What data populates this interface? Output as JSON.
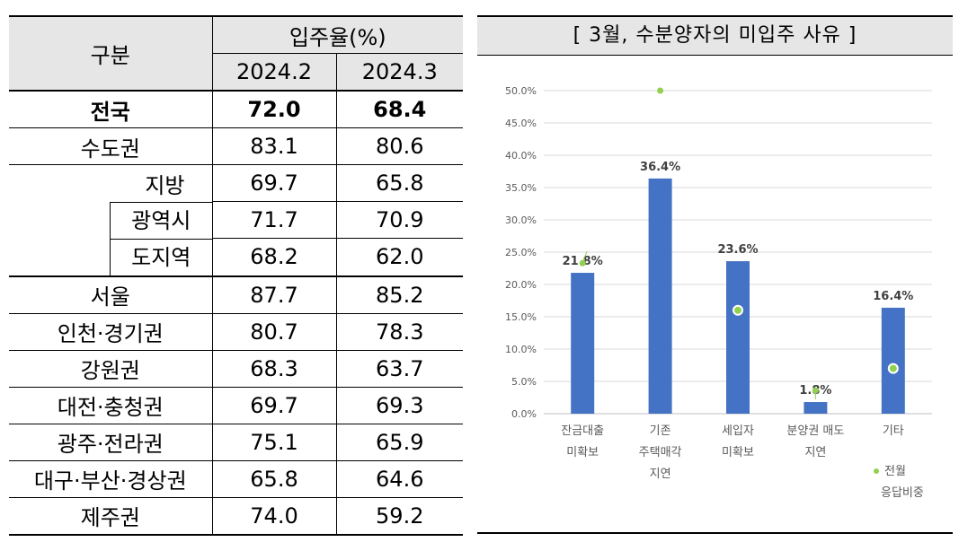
{
  "table": {
    "header_region": "구분",
    "header_rate": "입주율(%)",
    "header_col1": "2024.2",
    "header_col2": "2024.3",
    "rows": [
      {
        "region": "전국",
        "v1": "72.0",
        "v2": "68.4"
      },
      {
        "region": "수도권",
        "v1": "83.1",
        "v2": "80.6"
      },
      {
        "region": "지방",
        "v1": "69.7",
        "v2": "65.8"
      },
      {
        "region": "광역시",
        "v1": "71.7",
        "v2": "70.9"
      },
      {
        "region": "도지역",
        "v1": "68.2",
        "v2": "62.0"
      },
      {
        "region": "서울",
        "v1": "87.7",
        "v2": "85.2"
      },
      {
        "region": "인천·경기권",
        "v1": "80.7",
        "v2": "78.3"
      },
      {
        "region": "강원권",
        "v1": "68.3",
        "v2": "63.7"
      },
      {
        "region": "대전·충청권",
        "v1": "69.7",
        "v2": "69.3"
      },
      {
        "region": "광주·전라권",
        "v1": "75.1",
        "v2": "65.9"
      },
      {
        "region": "대구·부산·경상권",
        "v1": "65.8",
        "v2": "64.6"
      },
      {
        "region": "제주권",
        "v1": "74.0",
        "v2": "59.2"
      }
    ]
  },
  "chart_data": {
    "type": "bar",
    "title": "[ 3월, 수분양자의 미입주 사유 ]",
    "categories": [
      [
        "잔금대출",
        "미확보"
      ],
      [
        "기존",
        "주택매각",
        "지연"
      ],
      [
        "세입자",
        "미확보"
      ],
      [
        "분양권 매도",
        "지연"
      ],
      [
        "기타"
      ]
    ],
    "series": [
      {
        "values": [
          21.8,
          36.4,
          23.6,
          1.8,
          16.4
        ],
        "data_labels": [
          "21.8%",
          "36.4%",
          "23.6%",
          "1.8%",
          "16.4%"
        ]
      },
      {
        "name": "전월 응답비중",
        "name_lines": [
          "전월",
          "응답비중"
        ],
        "values": [
          23.3,
          50.0,
          16.0,
          3.6,
          7.0
        ]
      }
    ],
    "ylim": [
      0,
      50
    ],
    "yticks": [
      "0.0%",
      "5.0%",
      "10.0%",
      "15.0%",
      "20.0%",
      "25.0%",
      "30.0%",
      "35.0%",
      "40.0%",
      "45.0%",
      "50.0%"
    ],
    "legend_position": "bottom-right",
    "colors": {
      "bar": "#4472c4",
      "marker": "#92d050"
    }
  }
}
